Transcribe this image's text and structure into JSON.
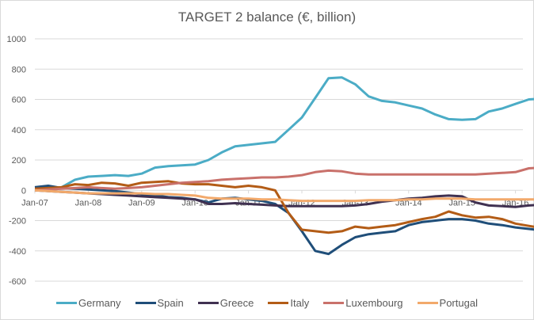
{
  "chart_data": {
    "type": "line",
    "title": "TARGET 2 balance (€, billion)",
    "xlabel": "",
    "ylabel": "",
    "ylim": [
      -600,
      1000
    ],
    "yticks": [
      1000,
      800,
      600,
      400,
      200,
      0,
      -200,
      -400,
      -600
    ],
    "ytick_labels": [
      "1000",
      "800",
      "600",
      "400",
      "200",
      "0",
      "-200",
      "-400",
      "-600"
    ],
    "x_tick_labels": [
      "Jan-07",
      "Jan-08",
      "Jan-09",
      "Jan-10",
      "Jan-11",
      "Jan-12",
      "Jan-13",
      "Jan-14",
      "Jan-15",
      "Jan-16"
    ],
    "x_frequency": "quarterly",
    "x_start": "Jan-07",
    "grid": true,
    "legend_position": "bottom",
    "series": [
      {
        "name": "Germany",
        "color": "#4bacc6",
        "values": [
          10,
          5,
          20,
          70,
          90,
          95,
          100,
          95,
          110,
          150,
          160,
          165,
          170,
          200,
          250,
          290,
          300,
          310,
          320,
          400,
          480,
          610,
          740,
          745,
          700,
          620,
          590,
          580,
          560,
          540,
          500,
          470,
          465,
          470,
          520,
          540,
          570,
          600,
          605
        ]
      },
      {
        "name": "Spain",
        "color": "#1f4e79",
        "values": [
          20,
          30,
          15,
          10,
          5,
          0,
          -5,
          -15,
          -25,
          -35,
          -45,
          -50,
          -60,
          -80,
          -55,
          -50,
          -60,
          -70,
          -90,
          -150,
          -270,
          -400,
          -420,
          -360,
          -310,
          -290,
          -280,
          -270,
          -230,
          -210,
          -200,
          -190,
          -190,
          -200,
          -220,
          -230,
          -245,
          -255,
          -265
        ]
      },
      {
        "name": "Greece",
        "color": "#403151",
        "values": [
          0,
          -5,
          -10,
          -15,
          -20,
          -25,
          -30,
          -35,
          -40,
          -45,
          -50,
          -55,
          -60,
          -90,
          -90,
          -85,
          -90,
          -95,
          -100,
          -105,
          -105,
          -105,
          -105,
          -105,
          -100,
          -90,
          -75,
          -65,
          -55,
          -50,
          -40,
          -35,
          -40,
          -80,
          -100,
          -105,
          -110,
          -100,
          -95
        ]
      },
      {
        "name": "Italy",
        "color": "#b35c16",
        "values": [
          10,
          15,
          20,
          40,
          35,
          50,
          45,
          30,
          50,
          55,
          60,
          45,
          40,
          40,
          30,
          20,
          30,
          20,
          0,
          -150,
          -260,
          -270,
          -280,
          -270,
          -240,
          -250,
          -240,
          -230,
          -210,
          -190,
          -175,
          -140,
          -165,
          -180,
          -175,
          -190,
          -220,
          -235,
          -250
        ]
      },
      {
        "name": "Luxembourg",
        "color": "#c9716b",
        "values": [
          0,
          5,
          10,
          15,
          20,
          15,
          10,
          15,
          20,
          30,
          40,
          50,
          55,
          60,
          70,
          75,
          80,
          85,
          85,
          90,
          100,
          120,
          130,
          125,
          110,
          105,
          105,
          105,
          105,
          105,
          105,
          105,
          105,
          105,
          110,
          115,
          120,
          145,
          150
        ]
      },
      {
        "name": "Portugal",
        "color": "#f2a96b",
        "values": [
          0,
          -5,
          -10,
          -15,
          -20,
          -20,
          -20,
          -20,
          -20,
          -25,
          -25,
          -30,
          -35,
          -50,
          -55,
          -55,
          -55,
          -60,
          -60,
          -65,
          -70,
          -70,
          -70,
          -70,
          -70,
          -65,
          -65,
          -65,
          -60,
          -60,
          -55,
          -55,
          -55,
          -60,
          -60,
          -60,
          -60,
          -60,
          -60
        ]
      }
    ]
  }
}
